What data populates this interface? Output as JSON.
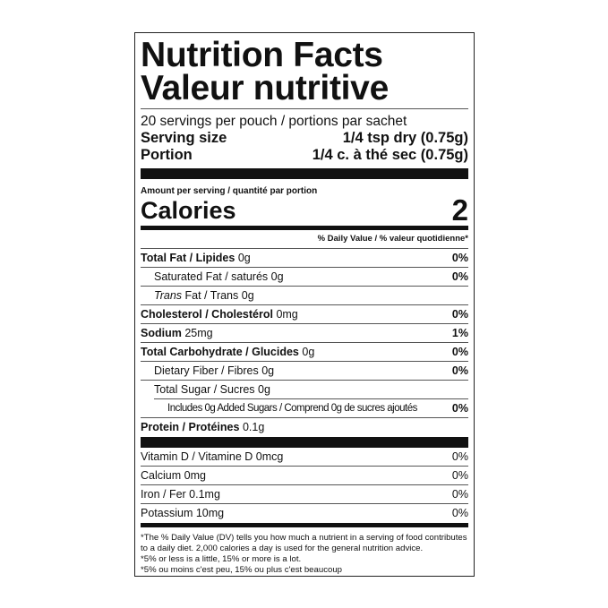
{
  "title_en": "Nutrition Facts",
  "title_fr": "Valeur nutritive",
  "servings": "20 servings per pouch / portions par sachet",
  "serving_size": {
    "label": "Serving size",
    "value": "1/4 tsp dry (0.75g)"
  },
  "portion": {
    "label": "Portion",
    "value": "1/4 c. à thé sec  (0.75g)"
  },
  "amount_per_serving": "Amount per serving / quantité par portion",
  "calories": {
    "label": "Calories",
    "value": "2"
  },
  "dv_header": "% Daily Value / % valeur quotidienne*",
  "nutrients": [
    {
      "name": "Total Fat / Lipides",
      "amount": "0g",
      "dv": "0%"
    },
    {
      "name": "Saturated Fat / saturés",
      "amount": "0g",
      "dv": "0%"
    },
    {
      "name_italic": "Trans",
      "name": "Fat / Trans",
      "amount": "0g",
      "dv": ""
    },
    {
      "name": "Cholesterol / Cholestérol",
      "amount": "0mg",
      "dv": "0%"
    },
    {
      "name": "Sodium",
      "amount": "25mg",
      "dv": "1%"
    },
    {
      "name": "Total Carbohydrate / Glucides",
      "amount": "0g",
      "dv": "0%"
    },
    {
      "name": "Dietary Fiber / Fibres",
      "amount": "0g",
      "dv": "0%"
    },
    {
      "name": "Total Sugar / Sucres",
      "amount": "0g",
      "dv": ""
    },
    {
      "name": "Includes 0g Added Sugars / Comprend 0g de sucres ajoutés",
      "amount": "",
      "dv": "0%"
    },
    {
      "name": "Protein / Protéines",
      "amount": "0.1g",
      "dv": ""
    }
  ],
  "vitamins": [
    {
      "name": "Vitamin D / Vitamine D 0mcg",
      "dv": "0%"
    },
    {
      "name": "Calcium 0mg",
      "dv": "0%"
    },
    {
      "name": "Iron / Fer 0.1mg",
      "dv": "0%"
    },
    {
      "name": "Potassium 10mg",
      "dv": "0%"
    }
  ],
  "footnote": [
    "*The % Daily Value (DV) tells you how much a nutrient in a serving of food contributes to a daily diet. 2,000 calories a day is used for the general nutrition advice.",
    "*5% or less is a little, 15% or more is a lot.",
    "*5% ou moins c'est peu, 15% ou plus c'est beaucoup"
  ]
}
